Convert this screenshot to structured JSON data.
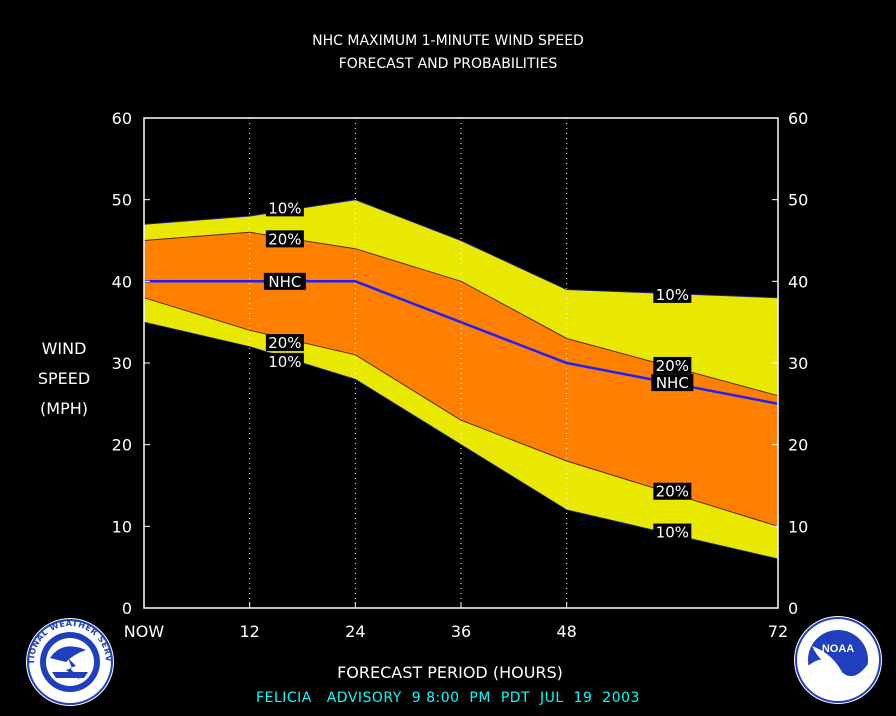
{
  "chart_data": {
    "type": "area",
    "title_line1": "NHC MAXIMUM 1-MINUTE WIND SPEED",
    "title_line2": "FORECAST AND PROBABILITIES",
    "ylabel_lines": [
      "WIND",
      "SPEED",
      "(MPH)"
    ],
    "xlabel": "FORECAST PERIOD (HOURS)",
    "footer": "FELICIA   ADVISORY  9 8:00  PM  PDT  JUL  19  2003",
    "xlim": [
      0,
      72
    ],
    "ylim": [
      0,
      60
    ],
    "x_ticks": [
      0,
      12,
      24,
      36,
      48,
      72
    ],
    "x_tick_labels": [
      "NOW",
      "12",
      "24",
      "36",
      "48",
      "72"
    ],
    "y_ticks": [
      0,
      10,
      20,
      30,
      40,
      50,
      60
    ],
    "y_tick_labels": [
      "0",
      "10",
      "20",
      "30",
      "40",
      "50",
      "60"
    ],
    "grid_x": [
      12,
      24,
      36,
      48
    ],
    "x": [
      0,
      12,
      24,
      36,
      48,
      72
    ],
    "series": [
      {
        "name": "10%",
        "kind": "upper",
        "values": [
          47,
          48,
          50,
          45,
          39,
          38
        ]
      },
      {
        "name": "20%",
        "kind": "upper",
        "values": [
          45,
          46,
          44,
          40,
          33,
          26
        ]
      },
      {
        "name": "NHC",
        "kind": "forecast",
        "values": [
          40,
          40,
          40,
          35,
          30,
          25
        ]
      },
      {
        "name": "20%",
        "kind": "lower",
        "values": [
          38,
          34,
          31,
          23,
          18,
          10
        ]
      },
      {
        "name": "10%",
        "kind": "lower",
        "values": [
          35,
          32,
          28,
          20,
          12,
          6
        ]
      }
    ],
    "colors": {
      "band_10": "#e8e800",
      "band_20": "#ff8000",
      "nhc_line": "#2020ff",
      "footer_text": "#00ffff",
      "frame": "#ffffff"
    },
    "labels": [
      {
        "text": "10%",
        "x": 16,
        "y": 49
      },
      {
        "text": "20%",
        "x": 16,
        "y": 45.2
      },
      {
        "text": "NHC",
        "x": 16,
        "y": 40
      },
      {
        "text": "20%",
        "x": 16,
        "y": 32.5
      },
      {
        "text": "10%",
        "x": 16,
        "y": 30.2
      },
      {
        "text": "10%",
        "x": 60,
        "y": 38.4
      },
      {
        "text": "20%",
        "x": 60,
        "y": 29.7
      },
      {
        "text": "NHC",
        "x": 60,
        "y": 27.6
      },
      {
        "text": "20%",
        "x": 60,
        "y": 14.3
      },
      {
        "text": "10%",
        "x": 60,
        "y": 9.3
      }
    ]
  },
  "logos": {
    "left": {
      "name": "nws-logo-icon",
      "text": "NATIONAL WEATHER SERVICE"
    },
    "right": {
      "name": "noaa-logo-icon",
      "text": "NOAA"
    }
  }
}
